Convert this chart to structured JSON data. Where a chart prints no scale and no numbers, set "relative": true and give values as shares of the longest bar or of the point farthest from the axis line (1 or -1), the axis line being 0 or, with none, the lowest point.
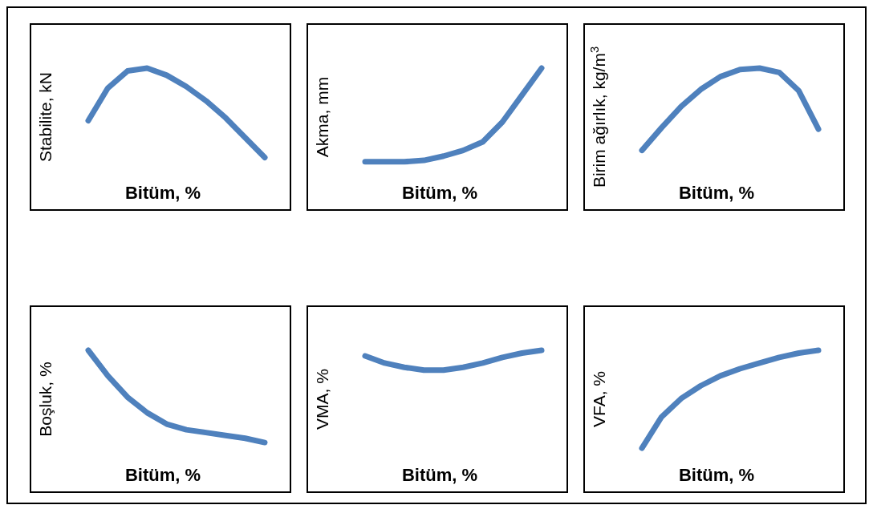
{
  "chart_data": [
    {
      "type": "line",
      "relative": true,
      "ylabel": "Stabilite, kN",
      "xlabel": "Bitüm, %",
      "categories": [
        null,
        null,
        null,
        null,
        null,
        null,
        null,
        null,
        null,
        null
      ],
      "color": "#4f81bd",
      "values": [
        0.63,
        0.86,
        0.98,
        1,
        0.95,
        0.87,
        0.77,
        0.65,
        0.51,
        0.37
      ]
    },
    {
      "type": "line",
      "relative": true,
      "ylabel": "Akma, mm",
      "xlabel": "Bitüm, %",
      "categories": [
        null,
        null,
        null,
        null,
        null,
        null,
        null,
        null,
        null,
        null
      ],
      "color": "#4f81bd",
      "values": [
        0.34,
        0.34,
        0.34,
        0.35,
        0.38,
        0.42,
        0.48,
        0.62,
        0.81,
        1
      ]
    },
    {
      "type": "line",
      "relative": true,
      "ylabel": "Birim ağırlık, kg/m$^{3}$",
      "xlabel": "Bitüm, %",
      "categories": [
        null,
        null,
        null,
        null,
        null,
        null,
        null,
        null,
        null,
        null
      ],
      "color": "#4f81bd",
      "values": [
        0.42,
        0.58,
        0.73,
        0.85,
        0.94,
        0.99,
        1,
        0.97,
        0.84,
        0.57
      ]
    },
    {
      "type": "line",
      "relative": true,
      "ylabel": "Boşluk, %",
      "xlabel": "Bitüm, %",
      "categories": [
        null,
        null,
        null,
        null,
        null,
        null,
        null,
        null,
        null,
        null
      ],
      "color": "#4f81bd",
      "values": [
        1,
        0.82,
        0.67,
        0.56,
        0.48,
        0.44,
        0.42,
        0.4,
        0.38,
        0.35
      ]
    },
    {
      "type": "line",
      "relative": true,
      "ylabel": "VMA, %",
      "xlabel": "Bitüm, %",
      "categories": [
        null,
        null,
        null,
        null,
        null,
        null,
        null,
        null,
        null,
        null
      ],
      "color": "#4f81bd",
      "values": [
        0.96,
        0.91,
        0.88,
        0.86,
        0.86,
        0.88,
        0.91,
        0.95,
        0.98,
        1
      ]
    },
    {
      "type": "line",
      "relative": true,
      "ylabel": "VFA, %",
      "xlabel": "Bitüm, %",
      "categories": [
        null,
        null,
        null,
        null,
        null,
        null,
        null,
        null,
        null,
        null
      ],
      "color": "#4f81bd",
      "values": [
        0.31,
        0.53,
        0.66,
        0.75,
        0.82,
        0.87,
        0.91,
        0.95,
        0.98,
        1
      ]
    }
  ]
}
